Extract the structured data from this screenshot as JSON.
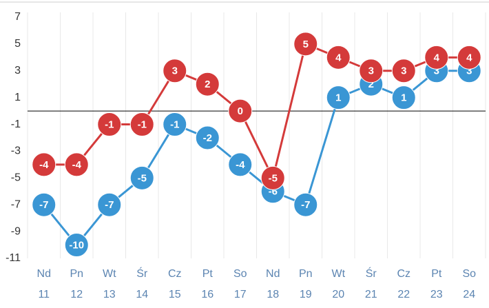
{
  "chart_data": {
    "type": "line",
    "categories": [
      {
        "weekday": "Nd",
        "day": "11"
      },
      {
        "weekday": "Pn",
        "day": "12"
      },
      {
        "weekday": "Wt",
        "day": "13"
      },
      {
        "weekday": "Śr",
        "day": "14"
      },
      {
        "weekday": "Cz",
        "day": "15"
      },
      {
        "weekday": "Pt",
        "day": "16"
      },
      {
        "weekday": "So",
        "day": "17"
      },
      {
        "weekday": "Nd",
        "day": "18"
      },
      {
        "weekday": "Pn",
        "day": "19"
      },
      {
        "weekday": "Wt",
        "day": "20"
      },
      {
        "weekday": "Śr",
        "day": "21"
      },
      {
        "weekday": "Cz",
        "day": "22"
      },
      {
        "weekday": "Pt",
        "day": "23"
      },
      {
        "weekday": "So",
        "day": "24"
      }
    ],
    "series": [
      {
        "color": "#3a96d4",
        "values": [
          -7,
          -10,
          -7,
          -5,
          -1,
          -2,
          -4,
          -6,
          -7,
          1,
          2,
          1,
          3,
          3
        ]
      },
      {
        "color": "#d43a3a",
        "values": [
          -4,
          -4,
          -1,
          -1,
          3,
          2,
          0,
          -5,
          5,
          4,
          3,
          3,
          4,
          4
        ]
      }
    ],
    "ylim": [
      -11,
      7
    ],
    "yticks": [
      -11,
      -9,
      -7,
      -5,
      -3,
      -1,
      1,
      3,
      5,
      7
    ],
    "grid": true
  }
}
